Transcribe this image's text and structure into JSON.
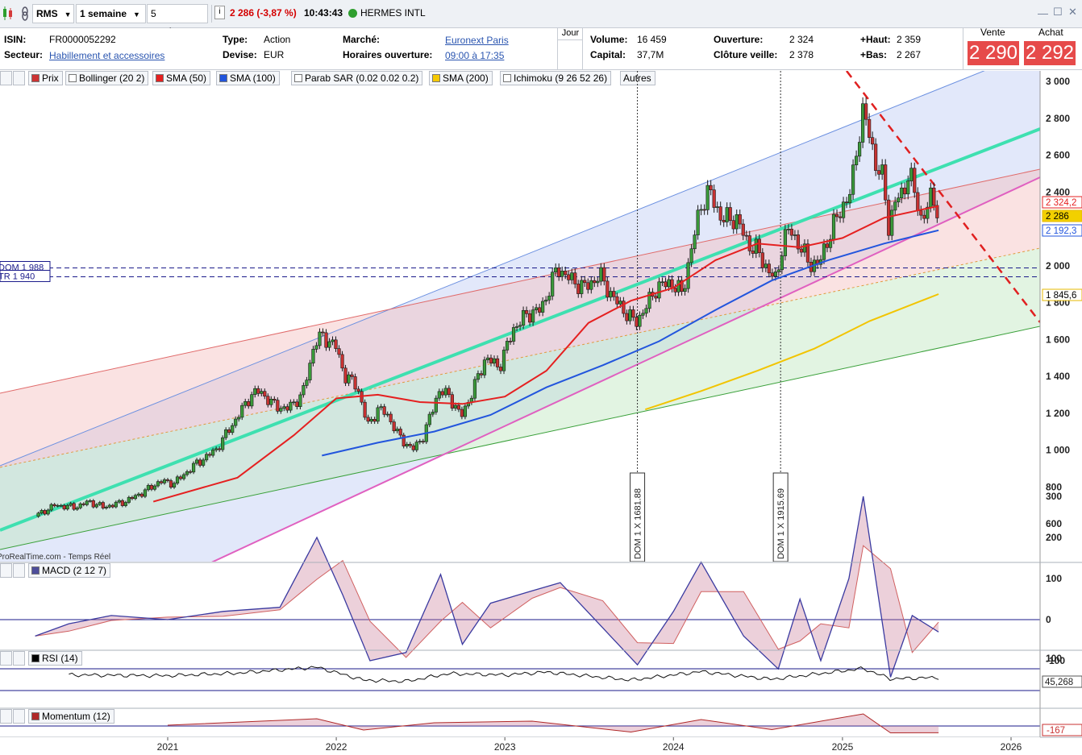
{
  "toolbar": {
    "symbol": "RMS",
    "period": "1 semaine",
    "range": "5 années",
    "change": "2 286 (-3,87 %)",
    "time": "10:43:43",
    "name": "HERMES INTL",
    "colors": {
      "down": "#d40000",
      "live": "#2e9e2e"
    }
  },
  "info": {
    "isin_label": "ISIN:",
    "isin": "FR0000052292",
    "sector_label": "Secteur:",
    "sector": "Habillement et accessoires",
    "type_label": "Type:",
    "type": "Action",
    "currency_label": "Devise:",
    "currency": "EUR",
    "market_label": "Marché:",
    "market": "Euronext Paris",
    "hours_label": "Horaires ouverture:",
    "hours": "09:00 à 17:35",
    "day_tab": "Jour",
    "volume_label": "Volume:",
    "volume": "16 459",
    "cap_label": "Capital:",
    "cap": "37,7M",
    "open_label": "Ouverture:",
    "open": "2 324",
    "prevclose_label": "Clôture veille:",
    "prevclose": "2 378",
    "high_label": "+Haut:",
    "high": "2 359",
    "low_label": "+Bas:",
    "low": "2 267",
    "sell_label": "Vente",
    "sell": "2 290",
    "buy_label": "Achat",
    "buy": "2 292"
  },
  "legend": {
    "items": [
      {
        "label": "Prix",
        "color": "#cc3333"
      },
      {
        "label": "Bollinger (20 2)",
        "color": "#ffffff"
      },
      {
        "label": "SMA (50)",
        "color": "#e52020"
      },
      {
        "label": "SMA (100)",
        "color": "#2255dd"
      },
      {
        "label": "Parab SAR (0.02 0.02 0.2)",
        "color": "#ffffff"
      },
      {
        "label": "SMA (200)",
        "color": "#f5c800"
      },
      {
        "label": "Ichimoku (9 26 52 26)",
        "color": "#ffffff"
      },
      {
        "label": "Autres",
        "color": ""
      }
    ]
  },
  "chart_data": [
    {
      "type": "candlestick",
      "title": "Prix",
      "ylim": [
        400,
        3000
      ],
      "y_ticks": [
        "3 000",
        "2 800",
        "2 600",
        "2 400",
        "2 000",
        "1 800",
        "1 600",
        "1 400",
        "1 200",
        "1 000",
        "800",
        "600"
      ],
      "x_ticks": [
        "2021",
        "2022",
        "2023",
        "2024",
        "2025",
        "2026"
      ],
      "price_label": "2 286",
      "labels_right": [
        "2 324,2",
        "2 192,3",
        "1 845,6"
      ],
      "hlines": [
        {
          "label": "DOM 1 988",
          "y": 1988
        },
        {
          "label": "TR 1 940",
          "y": 1940
        }
      ],
      "vlines": [
        {
          "label": "DOM 1 X 1681.88",
          "x": "2023-10-15"
        },
        {
          "label": "DOM 1 X 1915.69",
          "x": "2024-08-20"
        }
      ],
      "watermark": "ProRealTime.com - Temps Réel",
      "series_close": [
        [
          "2020-03-20",
          640
        ],
        [
          "2020-05-01",
          700
        ],
        [
          "2020-06-15",
          690
        ],
        [
          "2020-07-15",
          720
        ],
        [
          "2020-08-15",
          690
        ],
        [
          "2020-10-01",
          720
        ],
        [
          "2020-11-15",
          780
        ],
        [
          "2020-12-15",
          830
        ],
        [
          "2021-01-15",
          820
        ],
        [
          "2021-03-01",
          920
        ],
        [
          "2021-04-15",
          1000
        ],
        [
          "2021-06-01",
          1180
        ],
        [
          "2021-07-01",
          1300
        ],
        [
          "2021-07-20",
          1320
        ],
        [
          "2021-08-15",
          1250
        ],
        [
          "2021-09-15",
          1220
        ],
        [
          "2021-10-20",
          1300
        ],
        [
          "2021-11-15",
          1580
        ],
        [
          "2021-12-01",
          1620
        ],
        [
          "2021-12-31",
          1560
        ],
        [
          "2022-01-20",
          1400
        ],
        [
          "2022-02-15",
          1350
        ],
        [
          "2022-03-10",
          1130
        ],
        [
          "2022-04-01",
          1220
        ],
        [
          "2022-04-20",
          1200
        ],
        [
          "2022-05-15",
          1080
        ],
        [
          "2022-06-15",
          1000
        ],
        [
          "2022-07-10",
          1080
        ],
        [
          "2022-08-10",
          1320
        ],
        [
          "2022-09-01",
          1300
        ],
        [
          "2022-09-28",
          1180
        ],
        [
          "2022-10-20",
          1300
        ],
        [
          "2022-11-20",
          1500
        ],
        [
          "2022-12-20",
          1450
        ],
        [
          "2023-01-20",
          1660
        ],
        [
          "2023-02-20",
          1740
        ],
        [
          "2023-03-20",
          1760
        ],
        [
          "2023-04-25",
          1990
        ],
        [
          "2023-05-25",
          1920
        ],
        [
          "2023-06-25",
          1880
        ],
        [
          "2023-07-25",
          1950
        ],
        [
          "2023-08-25",
          1820
        ],
        [
          "2023-09-15",
          1760
        ],
        [
          "2023-10-10",
          1690
        ],
        [
          "2023-10-30",
          1760
        ],
        [
          "2023-11-25",
          1880
        ],
        [
          "2023-12-25",
          1910
        ],
        [
          "2024-01-20",
          1850
        ],
        [
          "2024-02-10",
          2100
        ],
        [
          "2024-02-29",
          2330
        ],
        [
          "2024-03-20",
          2400
        ],
        [
          "2024-04-15",
          2250
        ],
        [
          "2024-05-15",
          2260
        ],
        [
          "2024-06-10",
          2120
        ],
        [
          "2024-07-01",
          2080
        ],
        [
          "2024-07-25",
          1970
        ],
        [
          "2024-08-10",
          1920
        ],
        [
          "2024-08-25",
          2130
        ],
        [
          "2024-09-10",
          2200
        ],
        [
          "2024-10-01",
          2100
        ],
        [
          "2024-10-20",
          2020
        ],
        [
          "2024-11-10",
          2000
        ],
        [
          "2024-12-01",
          2150
        ],
        [
          "2024-12-31",
          2320
        ],
        [
          "2025-01-20",
          2400
        ],
        [
          "2025-02-01",
          2650
        ],
        [
          "2025-02-15",
          2840
        ],
        [
          "2025-03-01",
          2700
        ],
        [
          "2025-03-15",
          2550
        ],
        [
          "2025-04-01",
          2450
        ],
        [
          "2025-04-10",
          2200
        ],
        [
          "2025-04-25",
          2350
        ],
        [
          "2025-05-10",
          2380
        ],
        [
          "2025-05-25",
          2520
        ],
        [
          "2025-06-05",
          2400
        ],
        [
          "2025-06-20",
          2260
        ],
        [
          "2025-07-01",
          2300
        ],
        [
          "2025-07-15",
          2380
        ],
        [
          "2025-07-28",
          2286
        ]
      ],
      "sma50": [
        [
          "2020-12-01",
          720
        ],
        [
          "2021-06-01",
          850
        ],
        [
          "2021-10-01",
          1080
        ],
        [
          "2022-01-01",
          1280
        ],
        [
          "2022-04-01",
          1300
        ],
        [
          "2022-07-01",
          1260
        ],
        [
          "2022-10-01",
          1250
        ],
        [
          "2023-01-01",
          1290
        ],
        [
          "2023-04-01",
          1430
        ],
        [
          "2023-07-01",
          1690
        ],
        [
          "2023-10-01",
          1810
        ],
        [
          "2024-01-01",
          1880
        ],
        [
          "2024-04-01",
          2030
        ],
        [
          "2024-07-01",
          2120
        ],
        [
          "2024-10-01",
          2100
        ],
        [
          "2025-01-01",
          2150
        ],
        [
          "2025-04-01",
          2260
        ],
        [
          "2025-07-28",
          2324
        ]
      ],
      "sma100": [
        [
          "2021-12-01",
          970
        ],
        [
          "2022-04-01",
          1040
        ],
        [
          "2022-08-01",
          1100
        ],
        [
          "2022-12-01",
          1190
        ],
        [
          "2023-04-01",
          1340
        ],
        [
          "2023-08-01",
          1460
        ],
        [
          "2023-12-01",
          1590
        ],
        [
          "2024-04-01",
          1760
        ],
        [
          "2024-08-01",
          1920
        ],
        [
          "2024-12-01",
          2030
        ],
        [
          "2025-04-01",
          2120
        ],
        [
          "2025-07-28",
          2192
        ]
      ],
      "sma200": [
        [
          "2023-11-01",
          1220
        ],
        [
          "2024-03-01",
          1320
        ],
        [
          "2024-07-01",
          1430
        ],
        [
          "2024-11-01",
          1550
        ],
        [
          "2025-03-01",
          1700
        ],
        [
          "2025-07-28",
          1846
        ]
      ]
    },
    {
      "type": "line",
      "title": "MACD (2 12 7)",
      "ylim": [
        -150,
        320
      ],
      "y_ticks": [
        "300",
        "200",
        "100",
        "0",
        "-100"
      ],
      "values": [
        [
          "2020-03-20",
          -40
        ],
        [
          "2020-06-01",
          -10
        ],
        [
          "2020-09-01",
          10
        ],
        [
          "2021-01-01",
          0
        ],
        [
          "2021-05-01",
          20
        ],
        [
          "2021-09-01",
          30
        ],
        [
          "2021-11-20",
          200
        ],
        [
          "2022-01-15",
          60
        ],
        [
          "2022-03-15",
          -100
        ],
        [
          "2022-06-01",
          -80
        ],
        [
          "2022-08-15",
          110
        ],
        [
          "2022-10-01",
          -60
        ],
        [
          "2022-12-01",
          40
        ],
        [
          "2023-03-01",
          70
        ],
        [
          "2023-05-01",
          90
        ],
        [
          "2023-08-01",
          -20
        ],
        [
          "2023-10-15",
          -110
        ],
        [
          "2024-01-01",
          20
        ],
        [
          "2024-03-01",
          140
        ],
        [
          "2024-06-01",
          -40
        ],
        [
          "2024-08-15",
          -120
        ],
        [
          "2024-10-01",
          50
        ],
        [
          "2024-11-15",
          -100
        ],
        [
          "2025-01-15",
          100
        ],
        [
          "2025-02-15",
          300
        ],
        [
          "2025-04-15",
          -140
        ],
        [
          "2025-06-01",
          10
        ],
        [
          "2025-07-28",
          -30
        ]
      ]
    },
    {
      "type": "line",
      "title": "RSI (14)",
      "ylim": [
        0,
        100
      ],
      "y_ticks": [
        "100"
      ],
      "last_label": "45,268",
      "values": [
        [
          "2020-06-01",
          55
        ],
        [
          "2021-01-01",
          52
        ],
        [
          "2021-06-01",
          62
        ],
        [
          "2021-11-20",
          85
        ],
        [
          "2022-03-01",
          35
        ],
        [
          "2022-06-01",
          30
        ],
        [
          "2022-09-01",
          60
        ],
        [
          "2023-01-01",
          55
        ],
        [
          "2023-04-01",
          66
        ],
        [
          "2023-10-01",
          35
        ],
        [
          "2024-03-01",
          68
        ],
        [
          "2024-08-01",
          38
        ],
        [
          "2025-02-15",
          80
        ],
        [
          "2025-04-15",
          40
        ],
        [
          "2025-07-28",
          45
        ]
      ]
    },
    {
      "type": "area",
      "title": "Momentum (12)",
      "last_label": "-167",
      "values": [
        [
          "2021-01-01",
          20
        ],
        [
          "2021-11-20",
          180
        ],
        [
          "2022-03-01",
          -100
        ],
        [
          "2022-08-01",
          80
        ],
        [
          "2023-03-01",
          120
        ],
        [
          "2023-10-01",
          -150
        ],
        [
          "2024-03-01",
          160
        ],
        [
          "2024-08-01",
          -90
        ],
        [
          "2025-02-15",
          300
        ],
        [
          "2025-04-15",
          -170
        ],
        [
          "2025-07-28",
          -167
        ]
      ]
    }
  ],
  "panels": {
    "macd": {
      "label": "MACD (2 12 7)"
    },
    "rsi": {
      "label": "RSI (14)"
    },
    "momentum": {
      "label": "Momentum (12)"
    }
  },
  "window": {
    "min_icon": "minimize-icon",
    "max_icon": "maximize-icon",
    "close_icon": "close-icon"
  }
}
